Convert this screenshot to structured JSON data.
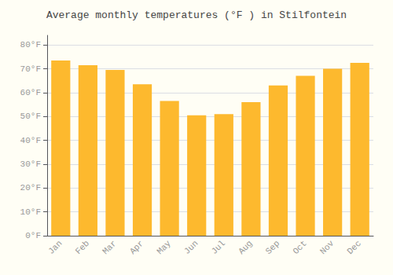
{
  "chart_data": {
    "type": "bar",
    "title": "Average monthly temperatures (°F ) in Stilfontein",
    "categories": [
      "Jan",
      "Feb",
      "Mar",
      "Apr",
      "May",
      "Jun",
      "Jul",
      "Aug",
      "Sep",
      "Oct",
      "Nov",
      "Dec"
    ],
    "values": [
      73.5,
      71.5,
      69.5,
      63.5,
      56.5,
      50.5,
      51.0,
      56.0,
      63.0,
      67.0,
      70.0,
      72.5
    ],
    "color": "#FDB92E",
    "ylim": [
      0,
      84
    ],
    "yticks": [
      {
        "value": 0,
        "label": "0°F"
      },
      {
        "value": 10,
        "label": "10°F"
      },
      {
        "value": 20,
        "label": "20°F"
      },
      {
        "value": 30,
        "label": "30°F"
      },
      {
        "value": 40,
        "label": "40°F"
      },
      {
        "value": 50,
        "label": "50°F"
      },
      {
        "value": 60,
        "label": "60°F"
      },
      {
        "value": 70,
        "label": "70°F"
      },
      {
        "value": 80,
        "label": "80°F"
      }
    ],
    "grid": true
  }
}
